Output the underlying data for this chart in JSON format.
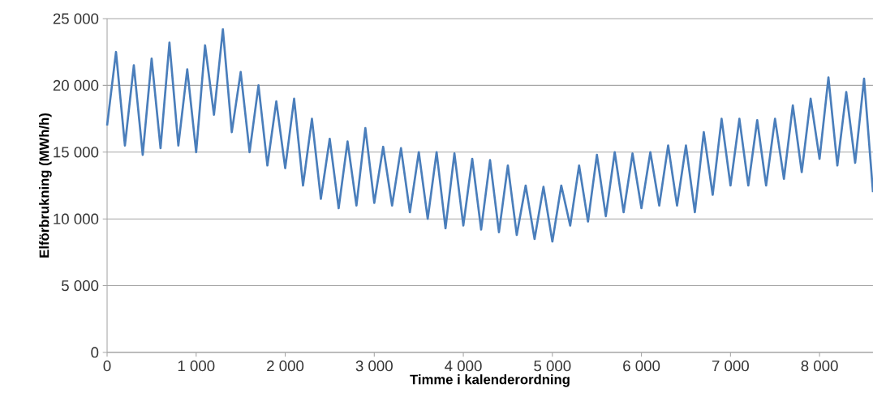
{
  "chart_data": {
    "type": "line",
    "xlabel": "Timme i kalenderordning",
    "ylabel": "Elförbrukning (MWh/h)",
    "x": [
      0,
      100,
      200,
      300,
      400,
      500,
      600,
      700,
      800,
      900,
      1000,
      1100,
      1200,
      1300,
      1400,
      1500,
      1600,
      1700,
      1800,
      1900,
      2000,
      2100,
      2200,
      2300,
      2400,
      2500,
      2600,
      2700,
      2800,
      2900,
      3000,
      3100,
      3200,
      3300,
      3400,
      3500,
      3600,
      3700,
      3800,
      3900,
      4000,
      4100,
      4200,
      4300,
      4400,
      4500,
      4600,
      4700,
      4800,
      4900,
      5000,
      5100,
      5200,
      5300,
      5400,
      5500,
      5600,
      5700,
      5800,
      5900,
      6000,
      6100,
      6200,
      6300,
      6400,
      6500,
      6600,
      6700,
      6800,
      6900,
      7000,
      7100,
      7200,
      7300,
      7400,
      7500,
      7600,
      7700,
      7800,
      7900,
      8000,
      8100,
      8200,
      8300,
      8400,
      8500,
      8600
    ],
    "series": [
      {
        "color": "#4a7ebb",
        "values": [
          17000,
          22500,
          15500,
          21500,
          14800,
          22000,
          15300,
          23200,
          15500,
          21200,
          15000,
          23000,
          17800,
          24200,
          16500,
          21000,
          15000,
          20000,
          14000,
          18800,
          13800,
          19000,
          12500,
          17500,
          11500,
          16000,
          10800,
          15800,
          11000,
          16800,
          11200,
          15400,
          11000,
          15300,
          10500,
          15000,
          10000,
          15000,
          9300,
          14900,
          9500,
          14500,
          9200,
          14400,
          9000,
          14000,
          8800,
          12500,
          8500,
          12400,
          8300,
          12500,
          9500,
          14000,
          9800,
          14800,
          10200,
          15000,
          10500,
          14900,
          10800,
          15000,
          11000,
          15500,
          11000,
          15500,
          10500,
          16500,
          11800,
          17500,
          12500,
          17500,
          12500,
          17400,
          12500,
          17500,
          13000,
          18500,
          13500,
          19000,
          14500,
          20600,
          14000,
          19500,
          14200,
          20500,
          12000
        ]
      }
    ],
    "xlim": [
      0,
      8600
    ],
    "ylim": [
      0,
      25000
    ],
    "xticks": [
      0,
      {
        "value": 1000,
        "label": "1 000"
      },
      {
        "value": 2000,
        "label": "2 000"
      },
      {
        "value": 3000,
        "label": "3 000"
      },
      {
        "value": 4000,
        "label": "4 000"
      },
      {
        "value": 5000,
        "label": "5 000"
      },
      {
        "value": 6000,
        "label": "6 000"
      },
      {
        "value": 7000,
        "label": "7 000"
      },
      {
        "value": 8000,
        "label": "8 000"
      }
    ],
    "yticks": [
      0,
      {
        "value": 5000,
        "label": "5 000"
      },
      {
        "value": 10000,
        "label": "10 000"
      },
      {
        "value": 15000,
        "label": "15 000"
      },
      {
        "value": 20000,
        "label": "20 000"
      },
      {
        "value": 25000,
        "label": "25 000"
      }
    ],
    "grid": "y",
    "marker": "none",
    "line_style": "solid"
  }
}
